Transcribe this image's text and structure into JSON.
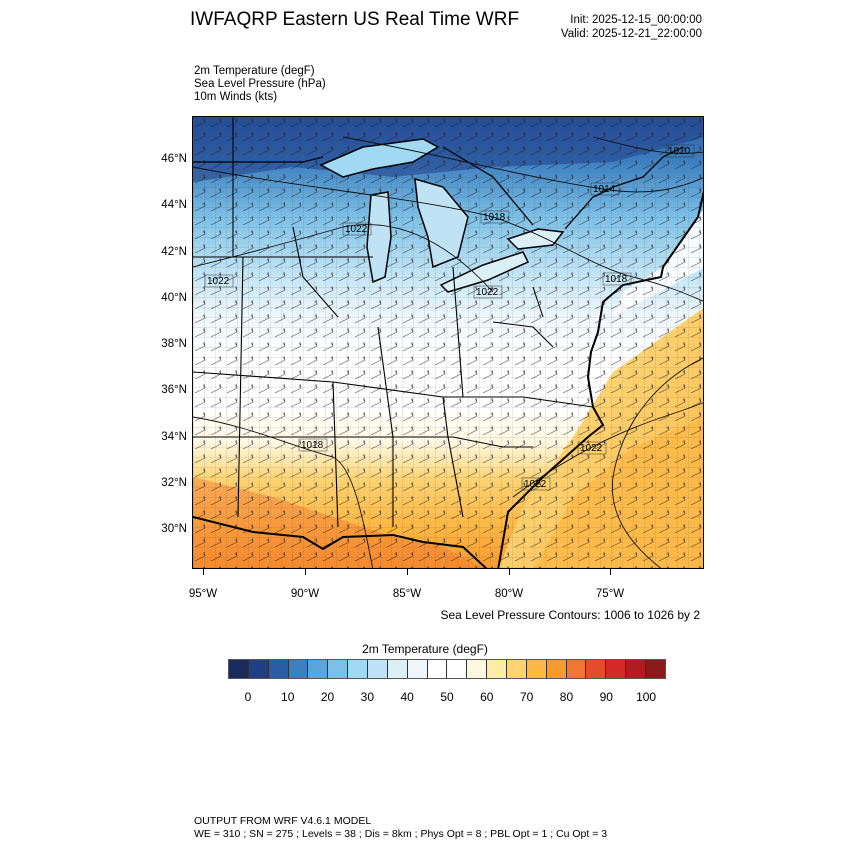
{
  "header": {
    "title": "IWFAQRP Eastern US Real Time WRF",
    "init": "Init: 2025-12-15_00:00:00",
    "valid": "Valid: 2025-12-21_22:00:00"
  },
  "fields": [
    "2m Temperature   (degF)",
    "Sea Level Pressure   (hPa)",
    "10m Winds   (kts)"
  ],
  "axes": {
    "lat_labels": [
      "46°N",
      "44°N",
      "42°N",
      "40°N",
      "38°N",
      "36°N",
      "34°N",
      "32°N",
      "30°N"
    ],
    "lon_labels": [
      "95°W",
      "90°W",
      "85°W",
      "80°W",
      "75°W"
    ]
  },
  "contour_labels": [
    "1010",
    "1014",
    "1018",
    "1022",
    "1022",
    "1022",
    "1018",
    "1018",
    "1022",
    "1022"
  ],
  "contour_note": "Sea Level Pressure Contours: 1006 to 1026 by 2",
  "colorbar": {
    "title": "2m Temperature  (degF)",
    "labels": [
      "0",
      "10",
      "20",
      "30",
      "40",
      "50",
      "60",
      "70",
      "80",
      "90",
      "100"
    ],
    "colors": [
      "#1b2a5e",
      "#223f86",
      "#2a5ca8",
      "#3d80c0",
      "#5ba6d8",
      "#7cc0e6",
      "#a2d9f2",
      "#bfe3f4",
      "#dbeff7",
      "#eff7fb",
      "#ffffff",
      "#ffffff",
      "#fff8e0",
      "#fdeca8",
      "#fdd372",
      "#fdb846",
      "#f99a2c",
      "#f27630",
      "#e44c2c",
      "#d42a2a",
      "#b01c24",
      "#8b1a1a"
    ]
  },
  "footer": {
    "line1": "OUTPUT FROM WRF V4.6.1 MODEL",
    "line2": "WE = 310 ; SN = 275 ; Levels = 38 ; Dis = 8km ; Phys Opt = 8 ; PBL Opt = 1 ; Cu Opt = 3"
  }
}
